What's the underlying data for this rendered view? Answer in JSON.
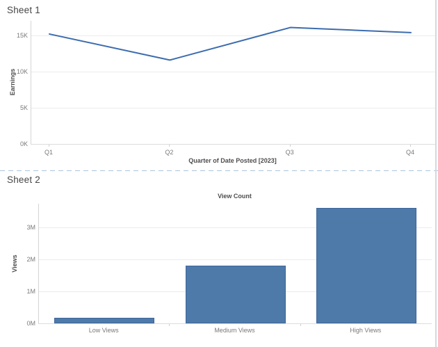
{
  "sheet1": {
    "title": "Sheet 1"
  },
  "sheet2": {
    "title": "Sheet 2"
  },
  "divider": {
    "color": "#a9c3de"
  },
  "chart_data": [
    {
      "type": "line",
      "title": "",
      "categories": [
        "Q1",
        "Q2",
        "Q3",
        "Q4"
      ],
      "values": [
        15200,
        11600,
        16100,
        15400
      ],
      "xlabel": "Quarter of Date Posted [2023]",
      "ylabel": "Earnings",
      "y_ticks": [
        {
          "label": "0K",
          "value": 0
        },
        {
          "label": "5K",
          "value": 5000
        },
        {
          "label": "10K",
          "value": 10000
        },
        {
          "label": "15K",
          "value": 15000
        }
      ],
      "ylim": [
        0,
        17000
      ],
      "grid": true,
      "legend": "none",
      "line_color": "#3c6cae"
    },
    {
      "type": "bar",
      "title": "View Count",
      "categories": [
        "Low Views",
        "Medium Views",
        "High Views"
      ],
      "values": [
        170000,
        1800000,
        3600000
      ],
      "xlabel": "",
      "ylabel": "Views",
      "y_ticks": [
        {
          "label": "0M",
          "value": 0
        },
        {
          "label": "1M",
          "value": 1000000
        },
        {
          "label": "2M",
          "value": 2000000
        },
        {
          "label": "3M",
          "value": 3000000
        }
      ],
      "ylim": [
        0,
        3750000
      ],
      "grid": true,
      "legend": "none",
      "bar_color": "#4e7aa9",
      "bar_border_color": "#3d659c"
    }
  ]
}
